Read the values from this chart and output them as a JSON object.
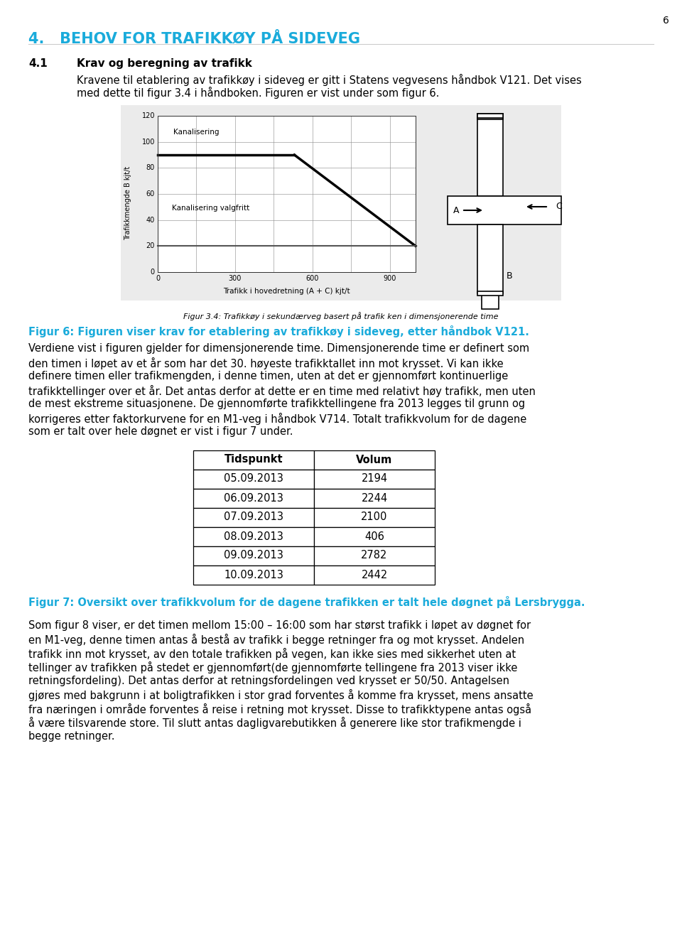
{
  "page_number": "6",
  "section_title": "4.   BEHOV FOR TRAFIKKØY PÅ SIDEVEG",
  "section_title_color": "#1AABDB",
  "subsection_number": "4.1",
  "subsection_title": "Krav og beregning av trafikk",
  "subsection_text_line1": "Kravene til etablering av trafikkøy i sideveg er gitt i Statens vegvesens håndbok V121. Det vises",
  "subsection_text_line2": "med dette til figur 3.4 i håndboken. Figuren er vist under som figur 6.",
  "fig_caption_italic": "Figur 3.4: Trafikkøy i sekundærveg basert på trafik ken i dimensjonerende time",
  "fig6_caption": "Figur 6: Figuren viser krav for etablering av trafikkøy i sideveg, etter håndbok V121.",
  "paragraph1_lines": [
    "Verdiene vist i figuren gjelder for dimensjonerende time. Dimensjonerende time er definert som",
    "den timen i løpet av et år som har det 30. høyeste trafikktallet inn mot krysset. Vi kan ikke",
    "definere timen eller trafikmengden, i denne timen, uten at det er gjennomført kontinuerlige",
    "trafikktellinger over et år. Det antas derfor at dette er en time med relativt høy trafikk, men uten",
    "de mest ekstreme situasjonene. De gjennomførte trafikktellingene fra 2013 legges til grunn og",
    "korrigeres etter faktorkurvene for en M1-veg i håndbok V714. Totalt trafikkvolum for de dagene",
    "som er talt over hele døgnet er vist i figur 7 under."
  ],
  "table_header": [
    "Tidspunkt",
    "Volum"
  ],
  "table_data": [
    [
      "05.09.2013",
      "2194"
    ],
    [
      "06.09.2013",
      "2244"
    ],
    [
      "07.09.2013",
      "2100"
    ],
    [
      "08.09.2013",
      "406"
    ],
    [
      "09.09.2013",
      "2782"
    ],
    [
      "10.09.2013",
      "2442"
    ]
  ],
  "fig7_caption": "Figur 7: Oversikt over trafikkvolum for de dagene trafikken er talt hele døgnet på Lersbrygga.",
  "paragraph2_lines": [
    "Som figur 8 viser, er det timen mellom 15:00 – 16:00 som har størst trafikk i løpet av døgnet for",
    "en M1-veg, denne timen antas å bestå av trafikk i begge retninger fra og mot krysset. Andelen",
    "trafikk inn mot krysset, av den totale trafikken på vegen, kan ikke sies med sikkerhet uten at",
    "tellinger av trafikken på stedet er gjennomført(de gjennomførte tellingene fra 2013 viser ikke",
    "retningsfordeling). Det antas derfor at retningsfordelingen ved krysset er 50/50. Antagelsen",
    "gjøres med bakgrunn i at boligtrafikken i stor grad forventes å komme fra krysset, mens ansatte",
    "fra næringen i område forventes å reise i retning mot krysset. Disse to trafikktypene antas også",
    "å være tilsvarende store. Til slutt antas dagligvarebutikken å generere like stor trafikmengde i",
    "begge retninger."
  ],
  "fig_caption_color": "#1AABDB",
  "background_color": "#FFFFFF"
}
